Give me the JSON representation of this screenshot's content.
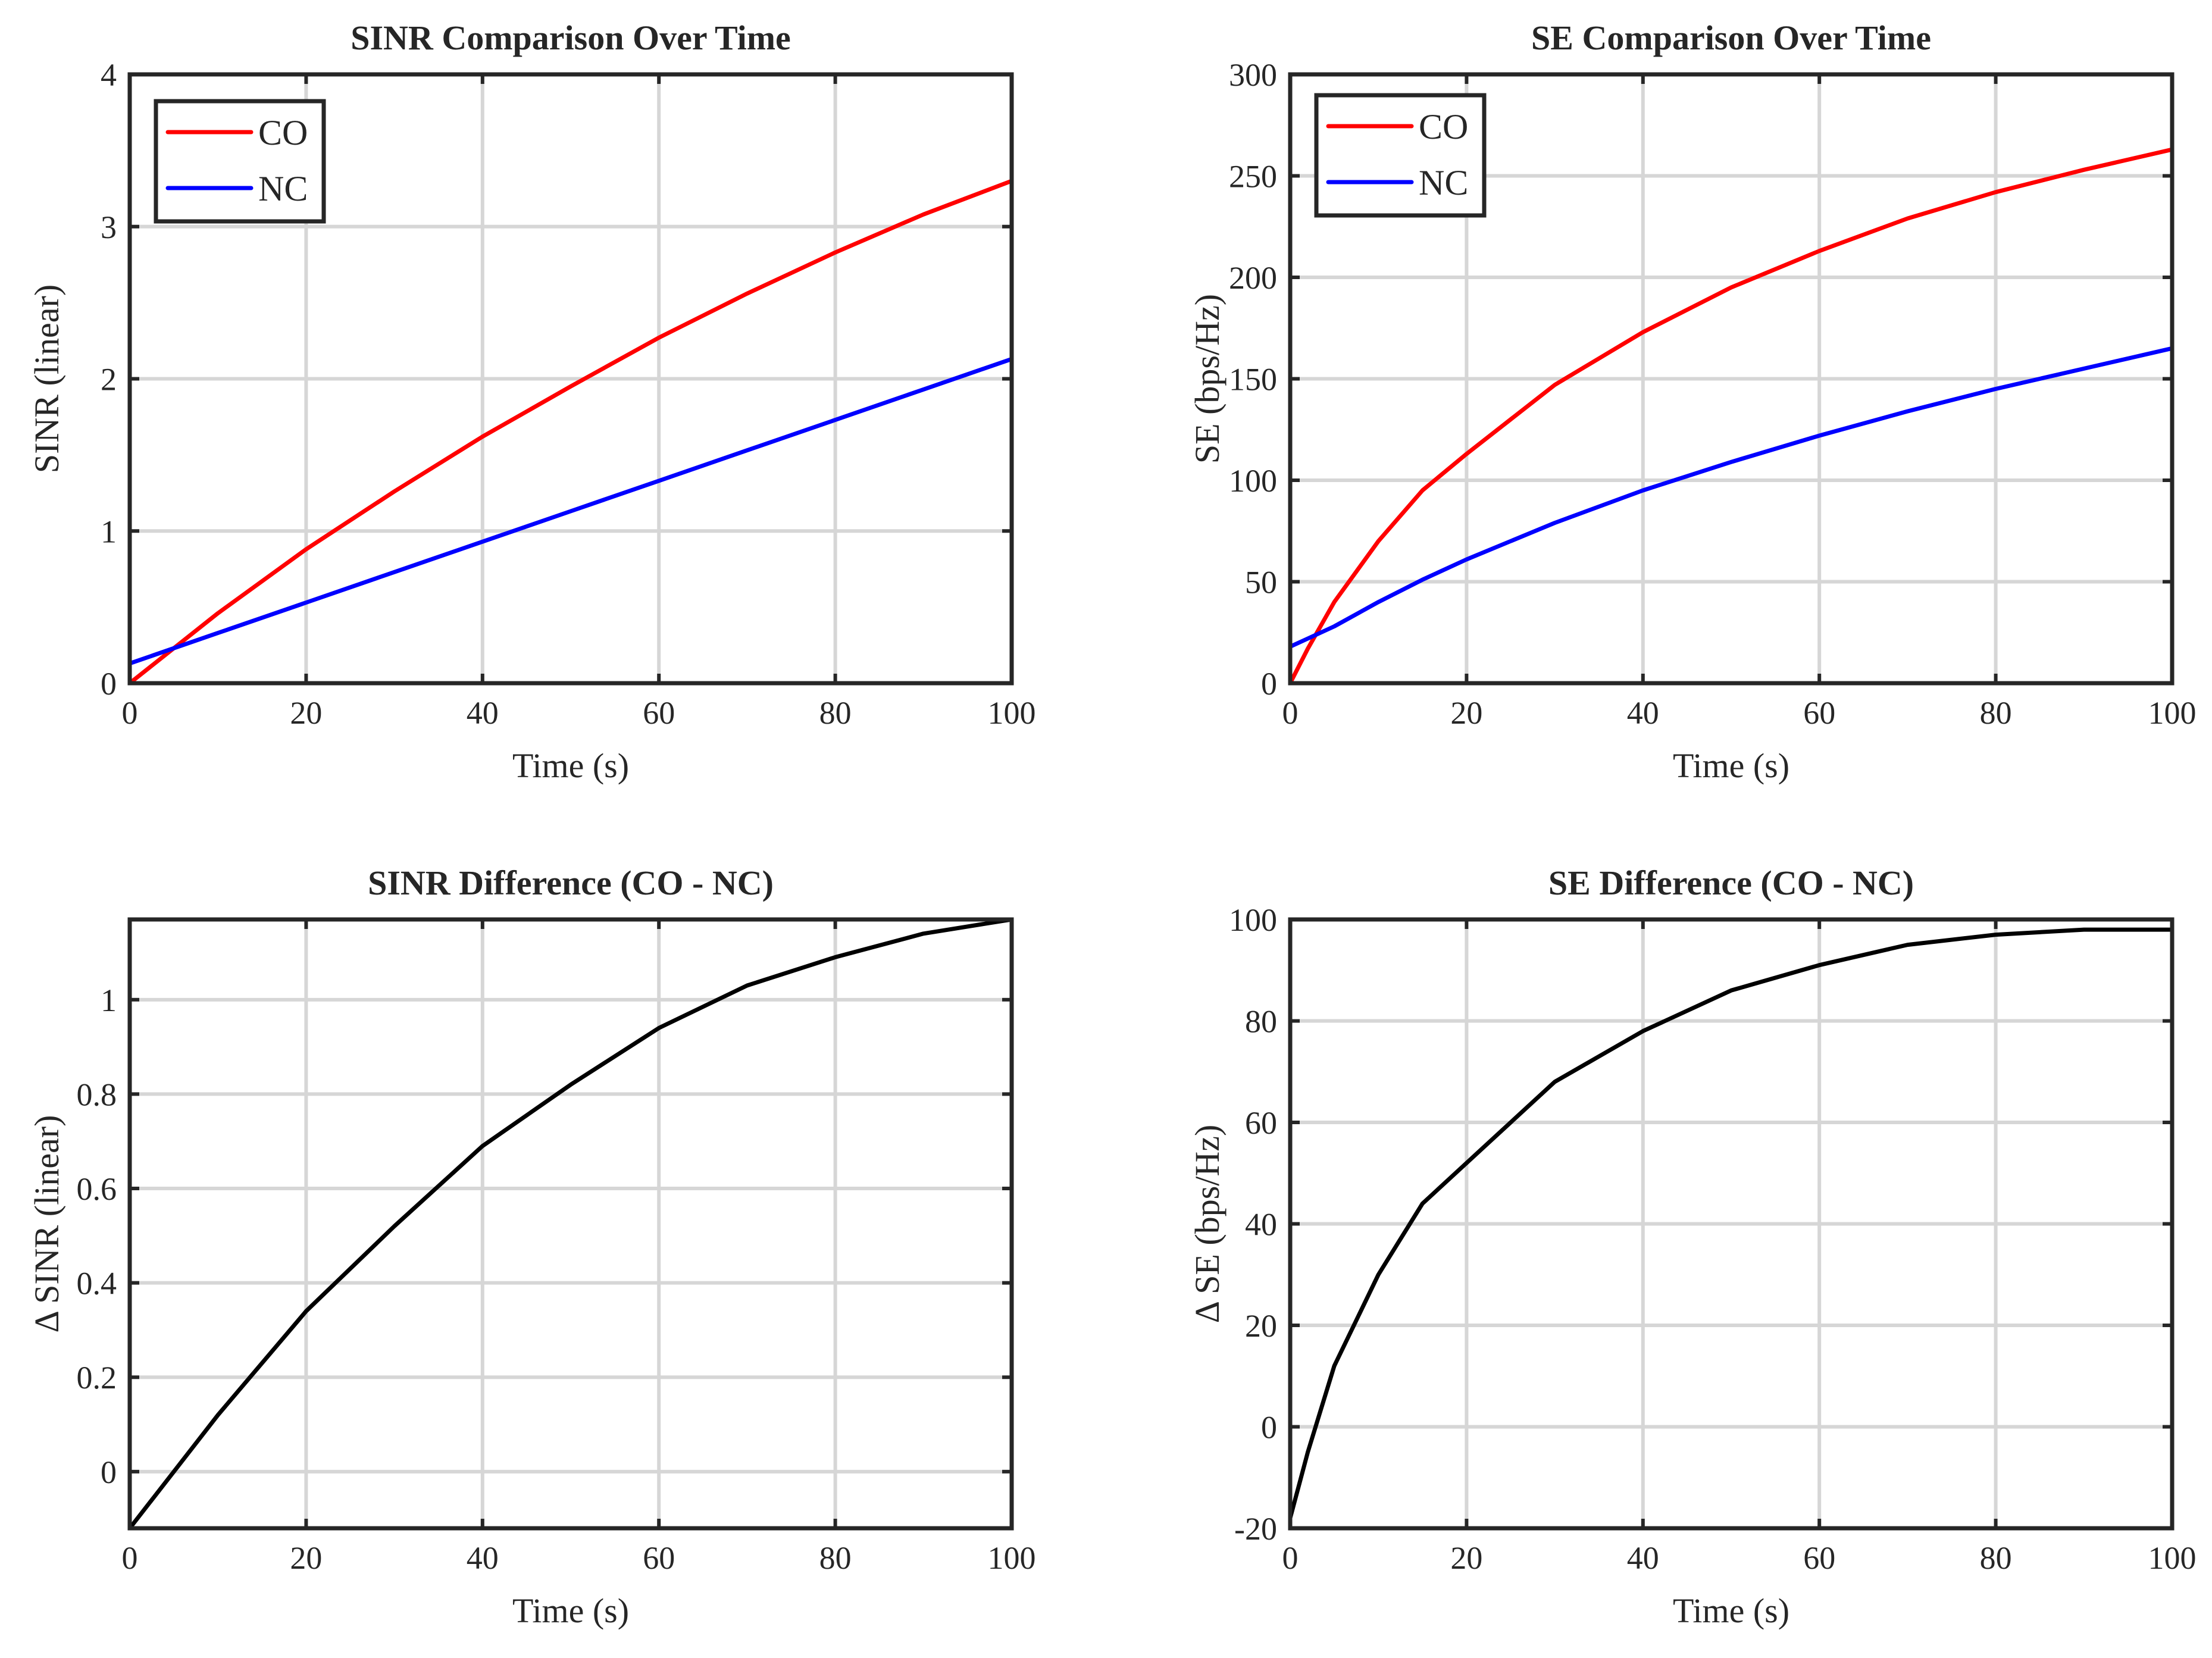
{
  "chart_data": [
    {
      "type": "line",
      "title": "SINR Comparison Over Time",
      "xlabel": "Time (s)",
      "ylabel": "SINR (linear)",
      "xlim": [
        0,
        100
      ],
      "ylim": [
        0,
        4
      ],
      "xticks": [
        0,
        20,
        40,
        60,
        80,
        100
      ],
      "xtick_labels": [
        "0",
        "20",
        "40",
        "60",
        "80",
        "100"
      ],
      "yticks": [
        0,
        1,
        2,
        3,
        4
      ],
      "ytick_labels": [
        "0",
        "1",
        "2",
        "3",
        "4"
      ],
      "grid": true,
      "legend": "top-left",
      "x": [
        0,
        10,
        20,
        30,
        40,
        50,
        60,
        70,
        80,
        90,
        100
      ],
      "series": [
        {
          "name": "CO",
          "color": "#ff0000",
          "values": [
            0,
            0.46,
            0.88,
            1.26,
            1.62,
            1.95,
            2.27,
            2.56,
            2.83,
            3.08,
            3.3
          ]
        },
        {
          "name": "NC",
          "color": "#0000ff",
          "values": [
            0.13,
            0.33,
            0.53,
            0.73,
            0.93,
            1.13,
            1.33,
            1.53,
            1.73,
            1.93,
            2.13
          ]
        }
      ]
    },
    {
      "type": "line",
      "title": "SE Comparison Over Time",
      "xlabel": "Time (s)",
      "ylabel": "SE (bps/Hz)",
      "xlim": [
        0,
        100
      ],
      "ylim": [
        0,
        300
      ],
      "xticks": [
        0,
        20,
        40,
        60,
        80,
        100
      ],
      "xtick_labels": [
        "0",
        "20",
        "40",
        "60",
        "80",
        "100"
      ],
      "yticks": [
        0,
        50,
        100,
        150,
        200,
        250,
        300
      ],
      "ytick_labels": [
        "0",
        "50",
        "100",
        "150",
        "200",
        "250",
        "300"
      ],
      "grid": true,
      "legend": "top-left",
      "x": [
        0,
        2,
        5,
        10,
        15,
        20,
        30,
        40,
        50,
        60,
        70,
        80,
        90,
        100
      ],
      "series": [
        {
          "name": "CO",
          "color": "#ff0000",
          "values": [
            0,
            17,
            40,
            70,
            95,
            113,
            147,
            173,
            195,
            213,
            229,
            242,
            253,
            263
          ]
        },
        {
          "name": "NC",
          "color": "#0000ff",
          "values": [
            18,
            22,
            28,
            40,
            51,
            61,
            79,
            95,
            109,
            122,
            134,
            145,
            155,
            165
          ]
        }
      ]
    },
    {
      "type": "line",
      "title": "SINR Difference (CO - NC)",
      "xlabel": "Time (s)",
      "ylabel": "Δ SINR (linear)",
      "xlim": [
        0,
        100
      ],
      "ylim": [
        -0.12,
        1.17
      ],
      "xticks": [
        0,
        20,
        40,
        60,
        80,
        100
      ],
      "xtick_labels": [
        "0",
        "20",
        "40",
        "60",
        "80",
        "100"
      ],
      "yticks": [
        0,
        0.2,
        0.4,
        0.6,
        0.8,
        1
      ],
      "ytick_labels": [
        "0",
        "0.2",
        "0.4",
        "0.6",
        "0.8",
        "1"
      ],
      "grid": true,
      "x": [
        0,
        10,
        20,
        30,
        40,
        50,
        60,
        70,
        80,
        90,
        100
      ],
      "series": [
        {
          "name": "CO - NC",
          "color": "#000000",
          "values": [
            -0.12,
            0.12,
            0.34,
            0.52,
            0.69,
            0.82,
            0.94,
            1.03,
            1.09,
            1.14,
            1.17
          ]
        }
      ]
    },
    {
      "type": "line",
      "title": "SE Difference (CO - NC)",
      "xlabel": "Time (s)",
      "ylabel": "Δ SE (bps/Hz)",
      "xlim": [
        0,
        100
      ],
      "ylim": [
        -20,
        100
      ],
      "xticks": [
        0,
        20,
        40,
        60,
        80,
        100
      ],
      "xtick_labels": [
        "0",
        "20",
        "40",
        "60",
        "80",
        "100"
      ],
      "yticks": [
        -20,
        0,
        20,
        40,
        60,
        80,
        100
      ],
      "ytick_labels": [
        "-20",
        "0",
        "20",
        "40",
        "60",
        "80",
        "100"
      ],
      "grid": true,
      "x": [
        0,
        2,
        5,
        10,
        15,
        20,
        30,
        40,
        50,
        60,
        70,
        80,
        90,
        100
      ],
      "series": [
        {
          "name": "CO - NC",
          "color": "#000000",
          "values": [
            -18,
            -5,
            12,
            30,
            44,
            52,
            68,
            78,
            86,
            91,
            95,
            97,
            98,
            98
          ]
        }
      ]
    }
  ]
}
